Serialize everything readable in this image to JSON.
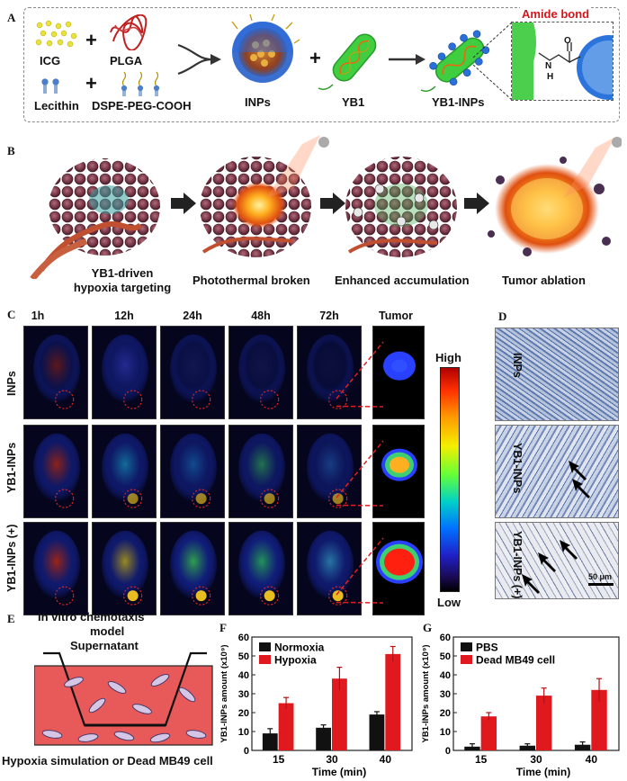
{
  "panels": {
    "a": "A",
    "b": "B",
    "c": "C",
    "d": "D",
    "e": "E",
    "f": "F",
    "g": "G"
  },
  "panel_a": {
    "icg": "ICG",
    "plga": "PLGA",
    "lecithin": "Lecithin",
    "dspe": "DSPE-PEG-COOH",
    "inps": "INPs",
    "yb1": "YB1",
    "yb1_inps": "YB1-INPs",
    "amide_bond": "Amide bond",
    "plus": "+",
    "n_atom": "N",
    "h_atom": "H",
    "o_atom": "O"
  },
  "panel_b": {
    "step1_line1": "YB1-driven",
    "step1_line2": "hypoxia targeting",
    "step2": "Photothermal broken",
    "step3": "Enhanced accumulation",
    "step4": "Tumor ablation"
  },
  "panel_c": {
    "times": [
      "1h",
      "12h",
      "24h",
      "48h",
      "72h",
      "Tumor"
    ],
    "rows": [
      "INPs",
      "YB1-INPs",
      "YB1-INPs (+)"
    ],
    "colorbar_high": "High",
    "colorbar_low": "Low"
  },
  "panel_d": {
    "rows": [
      "INPs",
      "YB1-INPs",
      "YB1-INPs (+)"
    ],
    "scale_bar": "50 μm"
  },
  "panel_e": {
    "title_line1": "In vitro chemotaxis",
    "title_line2": "model",
    "supernatant": "Supernatant",
    "bottom": "Hypoxia simulation or Dead MB49 cell"
  },
  "colors": {
    "black_series": "#111111",
    "red_series": "#e0191f",
    "medium": "#e8514a"
  },
  "chart_data": [
    {
      "type": "bar",
      "panel": "F",
      "categories": [
        "15",
        "30",
        "40"
      ],
      "series": [
        {
          "name": "Normoxia",
          "values": [
            9,
            12,
            19
          ],
          "errors": [
            2.5,
            1.5,
            1.5
          ]
        },
        {
          "name": "Hypoxia",
          "values": [
            25,
            38,
            51
          ],
          "errors": [
            3,
            6,
            4
          ]
        }
      ],
      "xlabel": "Time (min)",
      "ylabel": "YB1-INPs amount (x10⁹)",
      "ylim": [
        0,
        60
      ],
      "yticks": [
        "0",
        "10",
        "20",
        "30",
        "40",
        "50",
        "60"
      ],
      "legend": "top-left"
    },
    {
      "type": "bar",
      "panel": "G",
      "categories": [
        "15",
        "30",
        "40"
      ],
      "series": [
        {
          "name": "PBS",
          "values": [
            2,
            2.5,
            3
          ],
          "errors": [
            1.5,
            1,
            1.5
          ]
        },
        {
          "name": "Dead MB49 cell",
          "values": [
            18,
            29,
            32
          ],
          "errors": [
            2,
            4,
            6
          ]
        }
      ],
      "xlabel": "Time (min)",
      "ylabel": "YB1-INPs amount (x10⁹)",
      "ylim": [
        0,
        60
      ],
      "yticks": [
        "0",
        "10",
        "20",
        "30",
        "40",
        "50",
        "60"
      ],
      "legend": "top-left"
    }
  ]
}
